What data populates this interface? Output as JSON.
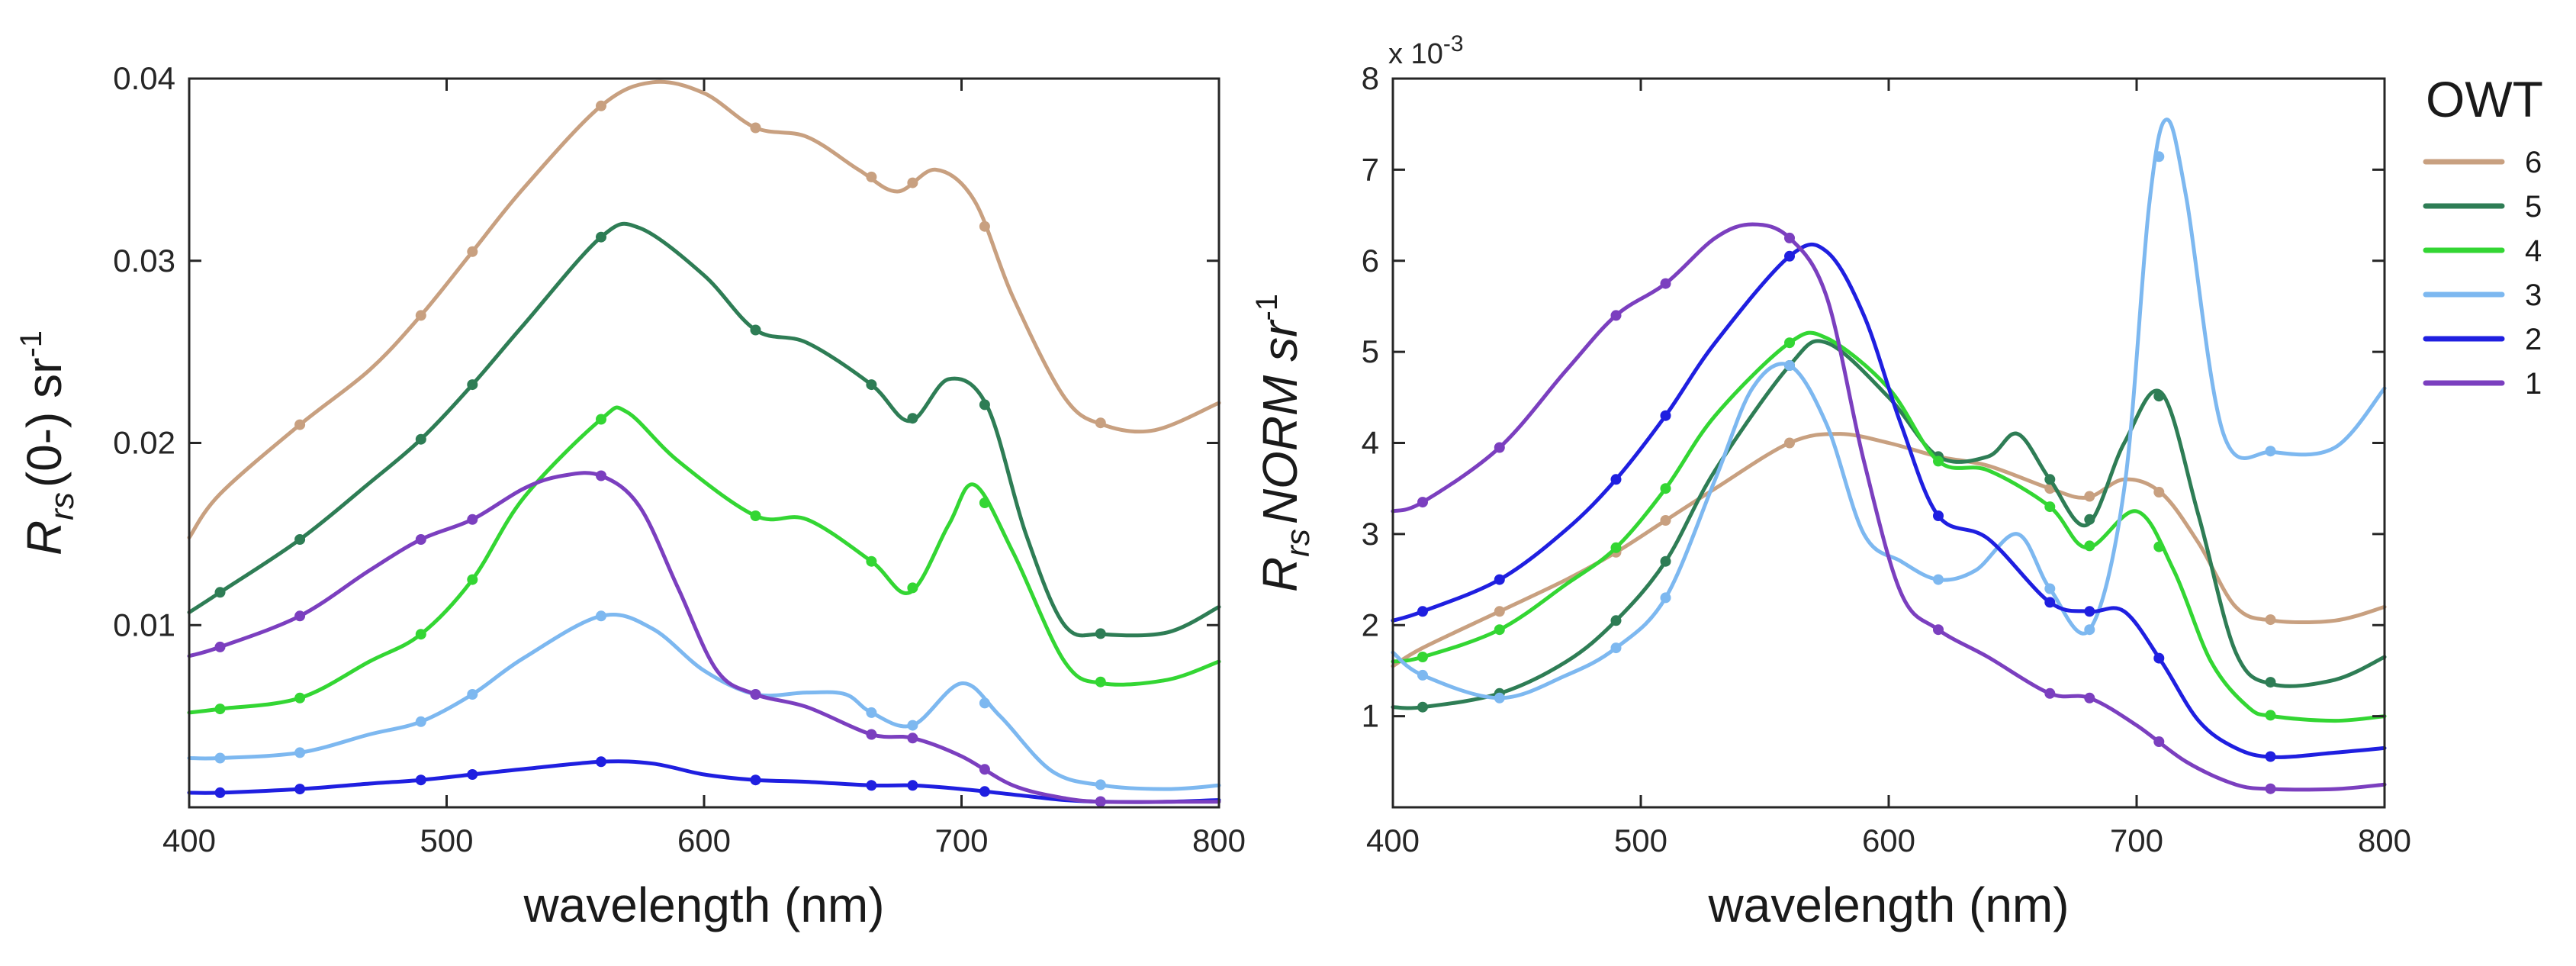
{
  "legend": {
    "title": "OWT",
    "items": [
      {
        "label": "6",
        "color": "#c8a080"
      },
      {
        "label": "5",
        "color": "#2e7d55"
      },
      {
        "label": "4",
        "color": "#33d633"
      },
      {
        "label": "3",
        "color": "#7db8f0"
      },
      {
        "label": "2",
        "color": "#1f1fe0"
      },
      {
        "label": "1",
        "color": "#7b3fbf"
      }
    ]
  },
  "chart_data": [
    {
      "type": "line",
      "xlabel": "wavelength (nm)",
      "ylabel": {
        "base": "R",
        "sub": "rs",
        "main": "(0-) sr",
        "sup": "-1"
      },
      "xlim": [
        400,
        800
      ],
      "ylim": [
        0,
        0.04
      ],
      "xticks": [
        400,
        500,
        600,
        700,
        800
      ],
      "xtick_labels": [
        "400",
        "500",
        "600",
        "700",
        "800"
      ],
      "yticks": [
        0.01,
        0.02,
        0.03,
        0.04
      ],
      "ytick_labels": [
        "0.01",
        "0.02",
        "0.03",
        "0.04"
      ],
      "grid": false,
      "series": [
        {
          "name": "6",
          "color": "#c8a080",
          "x": [
            400,
            412,
            443,
            470,
            490,
            510,
            530,
            560,
            580,
            600,
            620,
            640,
            660,
            675,
            690,
            705,
            720,
            740,
            755,
            775,
            800
          ],
          "y": [
            0.0148,
            0.0172,
            0.021,
            0.024,
            0.027,
            0.0305,
            0.034,
            0.0385,
            0.0398,
            0.0392,
            0.0373,
            0.0368,
            0.035,
            0.0338,
            0.035,
            0.0333,
            0.028,
            0.0225,
            0.021,
            0.0207,
            0.0222
          ],
          "markers_x": [
            443,
            490,
            510,
            560,
            620,
            665,
            681,
            709,
            754
          ]
        },
        {
          "name": "5",
          "color": "#2e7d55",
          "x": [
            400,
            412,
            443,
            470,
            490,
            510,
            530,
            560,
            575,
            600,
            620,
            640,
            665,
            680,
            695,
            710,
            725,
            740,
            755,
            780,
            800
          ],
          "y": [
            0.0107,
            0.0118,
            0.0147,
            0.0178,
            0.0202,
            0.0232,
            0.0265,
            0.0313,
            0.0318,
            0.0292,
            0.0262,
            0.0255,
            0.0232,
            0.0212,
            0.0235,
            0.022,
            0.015,
            0.01,
            0.0095,
            0.0096,
            0.011
          ],
          "markers_x": [
            412,
            443,
            490,
            510,
            560,
            620,
            665,
            681,
            709,
            754
          ]
        },
        {
          "name": "4",
          "color": "#33d633",
          "x": [
            400,
            412,
            443,
            470,
            490,
            510,
            530,
            560,
            570,
            590,
            620,
            640,
            665,
            680,
            695,
            705,
            720,
            740,
            755,
            780,
            800
          ],
          "y": [
            0.0052,
            0.0054,
            0.006,
            0.008,
            0.0095,
            0.0125,
            0.017,
            0.0213,
            0.0217,
            0.019,
            0.016,
            0.0158,
            0.0135,
            0.0118,
            0.0155,
            0.0177,
            0.014,
            0.008,
            0.0068,
            0.007,
            0.008
          ],
          "markers_x": [
            412,
            443,
            490,
            510,
            560,
            620,
            665,
            681,
            709,
            754
          ]
        },
        {
          "name": "3",
          "color": "#7db8f0",
          "x": [
            400,
            412,
            443,
            470,
            490,
            510,
            530,
            560,
            580,
            600,
            620,
            640,
            655,
            665,
            681,
            700,
            715,
            735,
            755,
            780,
            800
          ],
          "y": [
            0.0027,
            0.0027,
            0.003,
            0.004,
            0.0047,
            0.0062,
            0.0082,
            0.0105,
            0.0098,
            0.0075,
            0.0062,
            0.0063,
            0.0062,
            0.0052,
            0.0045,
            0.0068,
            0.005,
            0.002,
            0.0012,
            0.001,
            0.0012
          ],
          "markers_x": [
            412,
            443,
            490,
            510,
            560,
            620,
            665,
            681,
            709,
            754
          ]
        },
        {
          "name": "2",
          "color": "#1f1fe0",
          "x": [
            400,
            412,
            443,
            470,
            490,
            510,
            530,
            560,
            580,
            600,
            620,
            640,
            665,
            681,
            700,
            720,
            740,
            755,
            780,
            800
          ],
          "y": [
            0.0008,
            0.0008,
            0.001,
            0.0013,
            0.0015,
            0.0018,
            0.0021,
            0.0025,
            0.0024,
            0.0018,
            0.0015,
            0.0014,
            0.0012,
            0.0012,
            0.001,
            0.0007,
            0.0004,
            0.0003,
            0.0003,
            0.0004
          ],
          "markers_x": [
            412,
            443,
            490,
            510,
            560,
            620,
            665,
            681,
            709,
            754
          ]
        },
        {
          "name": "1",
          "color": "#7b3fbf",
          "x": [
            400,
            412,
            443,
            470,
            490,
            510,
            530,
            545,
            560,
            575,
            590,
            605,
            620,
            640,
            665,
            681,
            700,
            720,
            740,
            755,
            780,
            800
          ],
          "y": [
            0.0083,
            0.0088,
            0.0105,
            0.013,
            0.0147,
            0.0158,
            0.0175,
            0.0182,
            0.0182,
            0.0165,
            0.012,
            0.0075,
            0.0062,
            0.0055,
            0.004,
            0.0038,
            0.0028,
            0.0012,
            0.0005,
            0.0003,
            0.0003,
            0.0003
          ],
          "markers_x": [
            412,
            443,
            490,
            510,
            560,
            620,
            665,
            681,
            709,
            754
          ]
        }
      ]
    },
    {
      "type": "line",
      "xlabel": "wavelength (nm)",
      "ylabel": {
        "base": "R",
        "sub": "rs",
        "main": "NORM  sr",
        "sup": "-1"
      },
      "xlim": [
        400,
        800
      ],
      "ylim": [
        0,
        8
      ],
      "y_multiplier": {
        "base": "x 10",
        "exponent": "-3"
      },
      "xticks": [
        400,
        500,
        600,
        700,
        800
      ],
      "xtick_labels": [
        "400",
        "500",
        "600",
        "700",
        "800"
      ],
      "yticks": [
        1,
        2,
        3,
        4,
        5,
        6,
        7,
        8
      ],
      "ytick_labels": [
        "1",
        "2",
        "3",
        "4",
        "5",
        "6",
        "7",
        "8"
      ],
      "grid": false,
      "series": [
        {
          "name": "6",
          "color": "#c8a080",
          "x": [
            400,
            412,
            443,
            470,
            490,
            510,
            530,
            560,
            580,
            600,
            620,
            640,
            665,
            680,
            695,
            710,
            725,
            740,
            755,
            780,
            800
          ],
          "y": [
            1.55,
            1.75,
            2.15,
            2.5,
            2.8,
            3.15,
            3.5,
            4.0,
            4.1,
            4.0,
            3.85,
            3.75,
            3.5,
            3.4,
            3.6,
            3.45,
            2.9,
            2.2,
            2.05,
            2.05,
            2.2
          ],
          "markers_x": [
            443,
            490,
            510,
            560,
            620,
            665,
            681,
            709,
            754
          ]
        },
        {
          "name": "5",
          "color": "#2e7d55",
          "x": [
            400,
            412,
            443,
            470,
            490,
            510,
            530,
            560,
            575,
            600,
            620,
            640,
            652,
            665,
            680,
            695,
            710,
            725,
            740,
            755,
            780,
            800
          ],
          "y": [
            1.1,
            1.1,
            1.25,
            1.6,
            2.05,
            2.7,
            3.7,
            4.85,
            5.1,
            4.5,
            3.85,
            3.85,
            4.1,
            3.6,
            3.1,
            4.0,
            4.55,
            3.2,
            1.7,
            1.35,
            1.4,
            1.65
          ],
          "markers_x": [
            412,
            443,
            490,
            510,
            560,
            620,
            665,
            681,
            709,
            754
          ]
        },
        {
          "name": "4",
          "color": "#33d633",
          "x": [
            400,
            412,
            443,
            470,
            490,
            510,
            530,
            560,
            575,
            600,
            620,
            640,
            665,
            680,
            700,
            715,
            730,
            745,
            755,
            780,
            800
          ],
          "y": [
            1.6,
            1.65,
            1.95,
            2.45,
            2.85,
            3.5,
            4.3,
            5.1,
            5.15,
            4.6,
            3.8,
            3.7,
            3.3,
            2.85,
            3.25,
            2.6,
            1.6,
            1.1,
            1.0,
            0.95,
            1.0
          ],
          "markers_x": [
            412,
            443,
            490,
            510,
            560,
            620,
            665,
            681,
            709,
            754
          ]
        },
        {
          "name": "3",
          "color": "#7db8f0",
          "x": [
            400,
            412,
            443,
            470,
            490,
            510,
            530,
            545,
            560,
            575,
            590,
            605,
            620,
            635,
            652,
            665,
            681,
            695,
            705,
            712,
            720,
            735,
            755,
            780,
            800
          ],
          "y": [
            1.7,
            1.45,
            1.2,
            1.45,
            1.75,
            2.3,
            3.6,
            4.6,
            4.85,
            4.2,
            3.0,
            2.7,
            2.5,
            2.6,
            3.0,
            2.4,
            1.95,
            3.5,
            6.6,
            7.55,
            6.7,
            4.1,
            3.9,
            3.95,
            4.6
          ],
          "markers_x": [
            412,
            443,
            490,
            510,
            560,
            620,
            665,
            681,
            709,
            754
          ]
        },
        {
          "name": "2",
          "color": "#1f1fe0",
          "x": [
            400,
            412,
            443,
            470,
            490,
            510,
            530,
            560,
            575,
            590,
            605,
            620,
            640,
            665,
            681,
            695,
            710,
            725,
            740,
            755,
            780,
            800
          ],
          "y": [
            2.05,
            2.15,
            2.5,
            3.05,
            3.6,
            4.3,
            5.1,
            6.05,
            6.1,
            5.4,
            4.2,
            3.2,
            2.95,
            2.25,
            2.15,
            2.15,
            1.6,
            0.95,
            0.65,
            0.55,
            0.6,
            0.65
          ],
          "markers_x": [
            412,
            443,
            490,
            510,
            560,
            620,
            665,
            681,
            709,
            754
          ]
        },
        {
          "name": "1",
          "color": "#7b3fbf",
          "x": [
            400,
            412,
            443,
            470,
            490,
            510,
            530,
            545,
            560,
            575,
            590,
            605,
            620,
            640,
            665,
            681,
            700,
            720,
            740,
            755,
            780,
            800
          ],
          "y": [
            3.25,
            3.35,
            3.95,
            4.8,
            5.4,
            5.75,
            6.25,
            6.4,
            6.25,
            5.6,
            3.8,
            2.35,
            1.95,
            1.65,
            1.25,
            1.2,
            0.9,
            0.5,
            0.25,
            0.2,
            0.2,
            0.25
          ],
          "markers_x": [
            412,
            443,
            490,
            510,
            560,
            620,
            665,
            681,
            709,
            754
          ]
        }
      ]
    }
  ]
}
